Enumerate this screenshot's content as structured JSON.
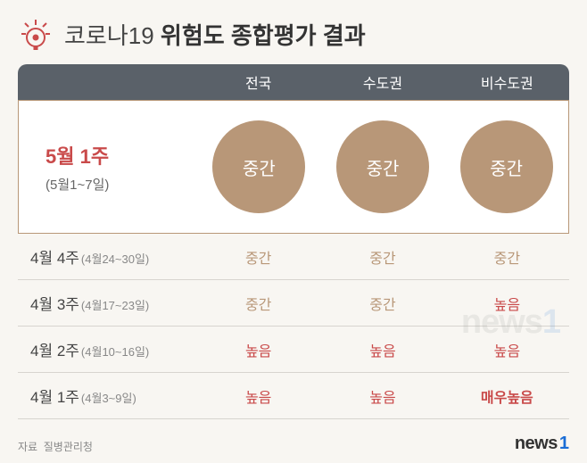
{
  "title_plain": "코로나19 ",
  "title_emph": "위험도 종합평가 결과",
  "header_cols": [
    "전국",
    "수도권",
    "비수도권"
  ],
  "hero": {
    "week": "5월 1주",
    "dates": "(5월1~7일)",
    "values": [
      "중간",
      "중간",
      "중간"
    ]
  },
  "rows": [
    {
      "week": "4월 4주",
      "dates": "(4월24~30일)",
      "values": [
        "중간",
        "중간",
        "중간"
      ],
      "levels": [
        "mid",
        "mid",
        "mid"
      ]
    },
    {
      "week": "4월 3주",
      "dates": "(4월17~23일)",
      "values": [
        "중간",
        "중간",
        "높음"
      ],
      "levels": [
        "mid",
        "mid",
        "high"
      ]
    },
    {
      "week": "4월 2주",
      "dates": "(4월10~16일)",
      "values": [
        "높음",
        "높음",
        "높음"
      ],
      "levels": [
        "high",
        "high",
        "high"
      ]
    },
    {
      "week": "4월 1주",
      "dates": "(4월3~9일)",
      "values": [
        "높음",
        "높음",
        "매우높음"
      ],
      "levels": [
        "high",
        "high",
        "veryhigh"
      ]
    }
  ],
  "source_label": "자료",
  "source_value": "질병관리청",
  "logo_text": "news",
  "logo_num": "1",
  "colors": {
    "header_bg": "#5a6169",
    "circle_bg": "#b89778",
    "hero_border": "#b89778",
    "hero_week": "#c94a4a",
    "mid": "#b89778",
    "high": "#c94a4a",
    "veryhigh": "#c94a4a",
    "page_bg": "#f8f6f2",
    "row_border": "#d7d4cf"
  }
}
